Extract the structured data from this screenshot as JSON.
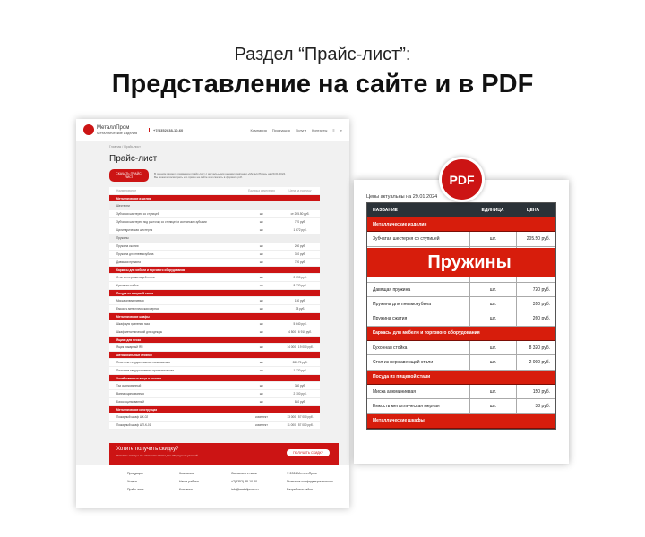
{
  "subtitle": "Раздел “Прайс-лист”:",
  "heading": "Представление на сайте и в PDF",
  "site": {
    "brand": "МеталлПром",
    "tagline": "Металлические изделия",
    "phone": "+7(8352) 38-10-60",
    "nav": [
      "Компания",
      "Продукция",
      "Услуги",
      "Контакты"
    ],
    "breadcrumb": "Главная / Прайс-лист",
    "title": "Прайс-лист",
    "download": "СКАЧАТЬ ПРАЙС-ЛИСТ",
    "download_text": "В данном разделе размещён прайс-лист с актуальными ценами компании «МеталлПром» на 29.01.2024. Вы можете посмотреть его прямо на сайте или скачать в формате pdf.",
    "columns": [
      "Наименование",
      "Единица измерения",
      "Цена за единицу"
    ],
    "rows": [
      {
        "t": "cat",
        "n": "Металлические изделия"
      },
      {
        "t": "sub",
        "n": "Шестерни"
      },
      {
        "n": "Зубчатая шестерня со ступицей",
        "u": "шт.",
        "p": "от 205.50 руб."
      },
      {
        "n": "Зубчатая шестерня под расточку со ступицей и колесными зубьями",
        "u": "шт.",
        "p": "770 руб."
      },
      {
        "n": "Цилиндрическая шестерня",
        "u": "шт.",
        "p": "1 672 руб."
      },
      {
        "t": "sub",
        "n": "Пружины"
      },
      {
        "n": "Пружина сжатия",
        "u": "шт.",
        "p": "260 руб."
      },
      {
        "n": "Пружина для пневмозубила",
        "u": "шт.",
        "p": "310 руб."
      },
      {
        "n": "Давящая пружина",
        "u": "шт.",
        "p": "720 руб."
      },
      {
        "t": "cat",
        "n": "Каркасы для мебели и торгового оборудования"
      },
      {
        "n": "Стол из нержавеющей стали",
        "u": "шт.",
        "p": "2 090 руб."
      },
      {
        "n": "Кухонная стойка",
        "u": "шт.",
        "p": "8 320 руб."
      },
      {
        "t": "cat",
        "n": "Посуда из пищевой стали"
      },
      {
        "n": "Миска алюминиевая",
        "u": "шт.",
        "p": "150 руб."
      },
      {
        "n": "Емкость металлическая мерная",
        "u": "шт.",
        "p": "38 руб."
      },
      {
        "t": "cat",
        "n": "Металлические шкафы"
      },
      {
        "n": "Шкаф для хранения газа",
        "u": "шт.",
        "p": "5 640 руб."
      },
      {
        "n": "Шкаф металлический для одежды",
        "u": "шт.",
        "p": "4 500 - 6 910 руб."
      },
      {
        "t": "cat",
        "n": "Ящики для песка"
      },
      {
        "n": "Ящик пожарный ЯП",
        "u": "шт.",
        "p": "14 000 - 19 000 руб."
      },
      {
        "t": "cat",
        "n": "Автомобильные стоянки"
      },
      {
        "n": "Пластина твердосплавная напаиваемая",
        "u": "шт.",
        "p": "280.75 руб."
      },
      {
        "n": "Пластина твердосплавная призматическая",
        "u": "шт.",
        "p": "1 120 руб."
      },
      {
        "t": "cat",
        "n": "Хозяйственные вещи и техника"
      },
      {
        "n": "Таз оцинкованный",
        "u": "шт.",
        "p": "380 руб."
      },
      {
        "n": "Ванна оцинкованная",
        "u": "шт.",
        "p": "2 100 руб."
      },
      {
        "n": "Бачок оцинкованный",
        "u": "шт.",
        "p": "840 руб."
      },
      {
        "t": "cat",
        "n": "Металлические конструкции"
      },
      {
        "n": "Пожарный шкаф ШК-02",
        "u": "комплект",
        "p": "13 000 - 57 000 руб."
      },
      {
        "n": "Пожарный шкаф ШП-К-01",
        "u": "комплект",
        "p": "11 000 - 57 000 руб."
      }
    ],
    "promo": {
      "title": "Хотите получить скидку?",
      "text": "Оставьте заявку и мы свяжемся с вами для обсуждения условий",
      "button": "ПОЛУЧИТЬ СКИДКУ"
    },
    "footer": [
      [
        "Продукция",
        "Услуги",
        "Прайс-лист"
      ],
      [
        "Компания",
        "Наши работы",
        "Контакты"
      ],
      [
        "Связаться с нами",
        "+7(8352) 38-10-60",
        "info@metallprom.ru"
      ],
      [
        "© 2024 МеталлПром",
        "Политика конфиденциальности",
        "Разработка сайта"
      ]
    ]
  },
  "pdf": {
    "badge": "PDF",
    "date": "Цены актуальны на 29.01.2024",
    "columns": [
      "НАЗВАНИЕ",
      "ЕДИНИЦА",
      "ЦЕНА"
    ],
    "rows": [
      {
        "t": "cat",
        "n": "Металлические изделия"
      },
      {
        "t": "cat sub",
        "n": "Шестерни"
      },
      {
        "n": "Зубчатая шестерня со ступицей",
        "u": "шт.",
        "p": "205.50 руб."
      },
      {
        "n": "Цилиндрическая шестерня",
        "u": "шт.",
        "p": "1 672 руб."
      },
      {
        "t": "tall",
        "n": "Зубчатая шестерня под расточку со ступицей и колесными зубьями",
        "u": "шт.",
        "p": "770 руб."
      },
      {
        "t": "cat sub",
        "n": "Пружины"
      },
      {
        "n": "Давящая пружина",
        "u": "шт.",
        "p": "720 руб."
      },
      {
        "n": "Пружина для пневмозубила",
        "u": "шт.",
        "p": "310 руб."
      },
      {
        "n": "Пружина сжатия",
        "u": "шт.",
        "p": "260 руб."
      },
      {
        "t": "cat",
        "n": "Каркасы для мебели и торгового оборудования"
      },
      {
        "n": "Кухонная стойка",
        "u": "шт.",
        "p": "8 320 руб."
      },
      {
        "n": "Стол из нержавеющей стали",
        "u": "шт.",
        "p": "2 090 руб."
      },
      {
        "t": "cat",
        "n": "Посуда из пищевой стали"
      },
      {
        "n": "Миска алюминиевая",
        "u": "шт.",
        "p": "150 руб."
      },
      {
        "n": "Емкость металлическая мерная",
        "u": "шт.",
        "p": "38 руб."
      },
      {
        "t": "cat",
        "n": "Металлические шкафы"
      }
    ]
  },
  "colors": {
    "accent": "#cc1414",
    "pdf_header": "#2b3238"
  }
}
